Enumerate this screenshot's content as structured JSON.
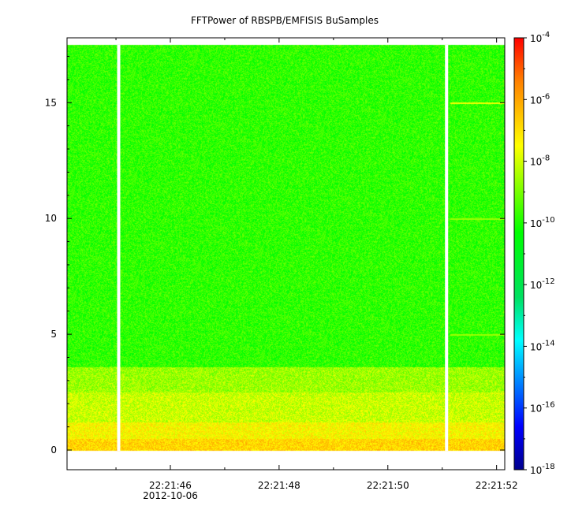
{
  "chart_data": {
    "type": "heatmap",
    "title": "FFTPower of RBSPB/EMFISIS  BuSamples",
    "xlabel": "",
    "ylabel": "",
    "x_ticks": [
      {
        "label": "22:21:46",
        "sublabel": "2012-10-06",
        "t": 46
      },
      {
        "label": "22:21:48",
        "t": 48
      },
      {
        "label": "22:21:50",
        "t": 50
      },
      {
        "label": "22:21:52",
        "t": 52
      }
    ],
    "x_range_seconds": [
      44.1,
      52.15
    ],
    "minor_x_ticks_seconds": [
      45,
      47,
      49,
      51
    ],
    "y_ticks": [
      "0",
      "5",
      "10",
      "15"
    ],
    "y_tick_values": [
      0,
      5,
      10,
      15
    ],
    "ylim": [
      -0.85,
      17.8
    ],
    "data_y_top": 17.5,
    "colorbar": {
      "scale": "log",
      "range": [
        1e-18,
        0.0001
      ],
      "tick_labels": [
        "10-18",
        "10-16",
        "10-14",
        "10-12",
        "10-10",
        "10-8",
        "10-6",
        "10-4"
      ],
      "tick_exponents": [
        -18,
        -16,
        -14,
        -12,
        -10,
        -8,
        -6,
        -4
      ]
    },
    "data_gaps_seconds": [
      45.05,
      51.08
    ],
    "bands": [
      {
        "y_from": 0,
        "y_to": 0.5,
        "log_power": -6.8
      },
      {
        "y_from": 0.5,
        "y_to": 1.2,
        "log_power": -7.4
      },
      {
        "y_from": 1.2,
        "y_to": 2.5,
        "log_power": -8.1
      },
      {
        "y_from": 2.5,
        "y_to": 3.6,
        "log_power": -8.6
      },
      {
        "y_from": 3.6,
        "y_to": 17.5,
        "log_power": -9.8
      }
    ],
    "lines": [
      {
        "y": 15,
        "from_seconds": 51.15,
        "log_power": -7.6
      },
      {
        "y": 10,
        "from_seconds": 51.15,
        "log_power": -8.6
      },
      {
        "y": 5,
        "from_seconds": 51.15,
        "log_power": -8.6
      }
    ]
  }
}
